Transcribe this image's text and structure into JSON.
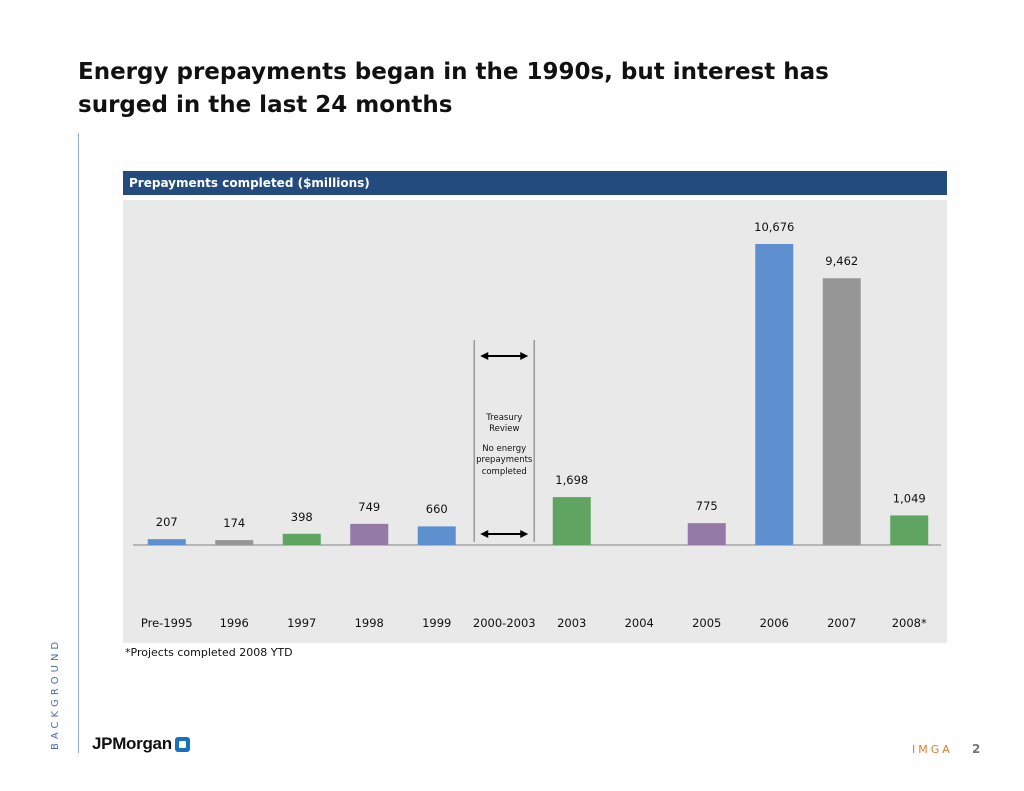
{
  "slide": {
    "title": "Energy prepayments began in the 1990s, but interest has surged in the last 24 months",
    "side_label": "BACKGROUND",
    "footnote": "*Projects completed 2008 YTD",
    "logo_text": "JPMorgan",
    "footer_brand": "IMGA",
    "page_number": "2"
  },
  "chart_data": {
    "type": "bar",
    "title": "Prepayments completed ($millions)",
    "categories": [
      "Pre-1995",
      "1996",
      "1997",
      "1998",
      "1999",
      "2000-2003",
      "2003",
      "2004",
      "2005",
      "2006",
      "2007",
      "2008*"
    ],
    "values": [
      207,
      174,
      398,
      749,
      660,
      null,
      1698,
      null,
      775,
      10676,
      9462,
      1049
    ],
    "value_labels": [
      "207",
      "174",
      "398",
      "749",
      "660",
      "",
      "1,698",
      "",
      "775",
      "10,676",
      "9,462",
      "1,049"
    ],
    "bar_colors": [
      "#5e8fcf",
      "#969696",
      "#5fa461",
      "#947aa6",
      "#5e8fcf",
      "",
      "#5fa461",
      "",
      "#947aa6",
      "#5e8fcf",
      "#969696",
      "#5fa461"
    ],
    "annotation": {
      "category": "2000-2003",
      "line1": "Treasury",
      "line2": "Review",
      "line3": "No energy",
      "line4": "prepayments",
      "line5": "completed"
    },
    "ylim": [
      0,
      10676
    ],
    "grid": false,
    "legend": "none"
  }
}
